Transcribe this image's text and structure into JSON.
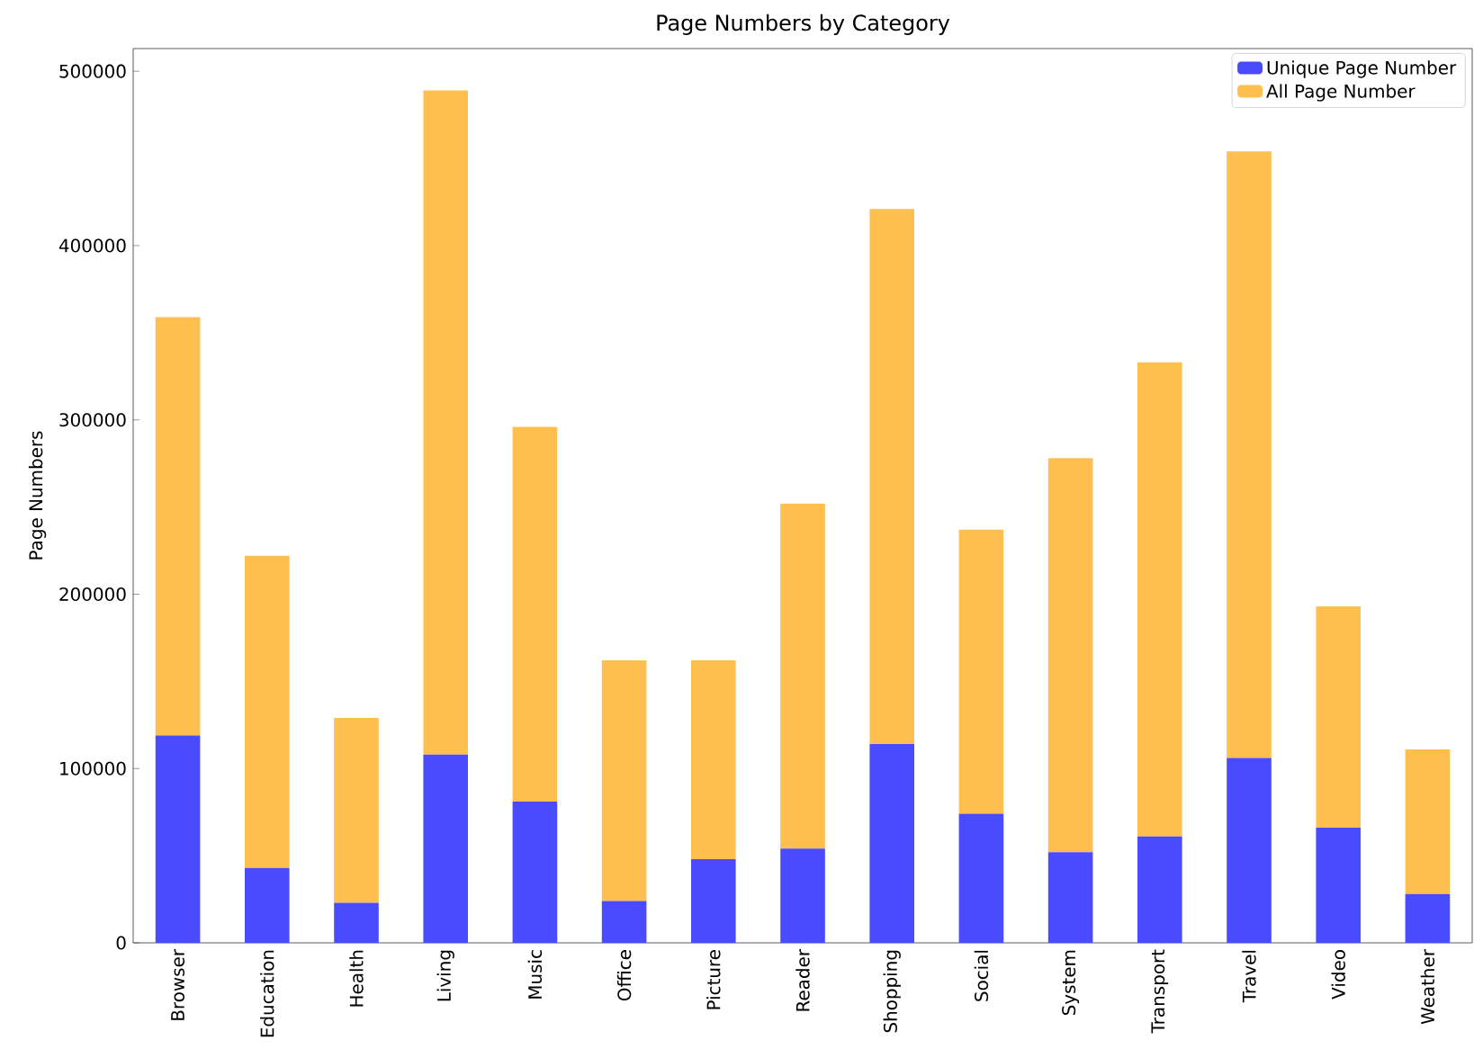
{
  "chart_data": {
    "type": "bar",
    "title": "Page Numbers by Category",
    "ylabel": "Page Numbers",
    "stacked": true,
    "categories": [
      "Browser",
      "Education",
      "Health",
      "Living",
      "Music",
      "Office",
      "Picture",
      "Reader",
      "Shopping",
      "Social",
      "System",
      "Transport",
      "Travel",
      "Video",
      "Weather"
    ],
    "series": [
      {
        "name": "Unique Page Number",
        "color": "#4a4aff",
        "values": [
          119000,
          43000,
          23000,
          108000,
          81000,
          24000,
          48000,
          54000,
          114000,
          74000,
          52000,
          61000,
          106000,
          66000,
          28000
        ]
      },
      {
        "name": "All Page Number",
        "color": "#ffbf4f",
        "values": [
          240000,
          179000,
          106000,
          381000,
          215000,
          138000,
          114000,
          198000,
          307000,
          163000,
          226000,
          272000,
          348000,
          127000,
          83000
        ]
      }
    ],
    "ylim": [
      0,
      513000
    ],
    "yticks": [
      0,
      100000,
      200000,
      300000,
      400000,
      500000
    ],
    "legend": "top right",
    "grid": false
  }
}
